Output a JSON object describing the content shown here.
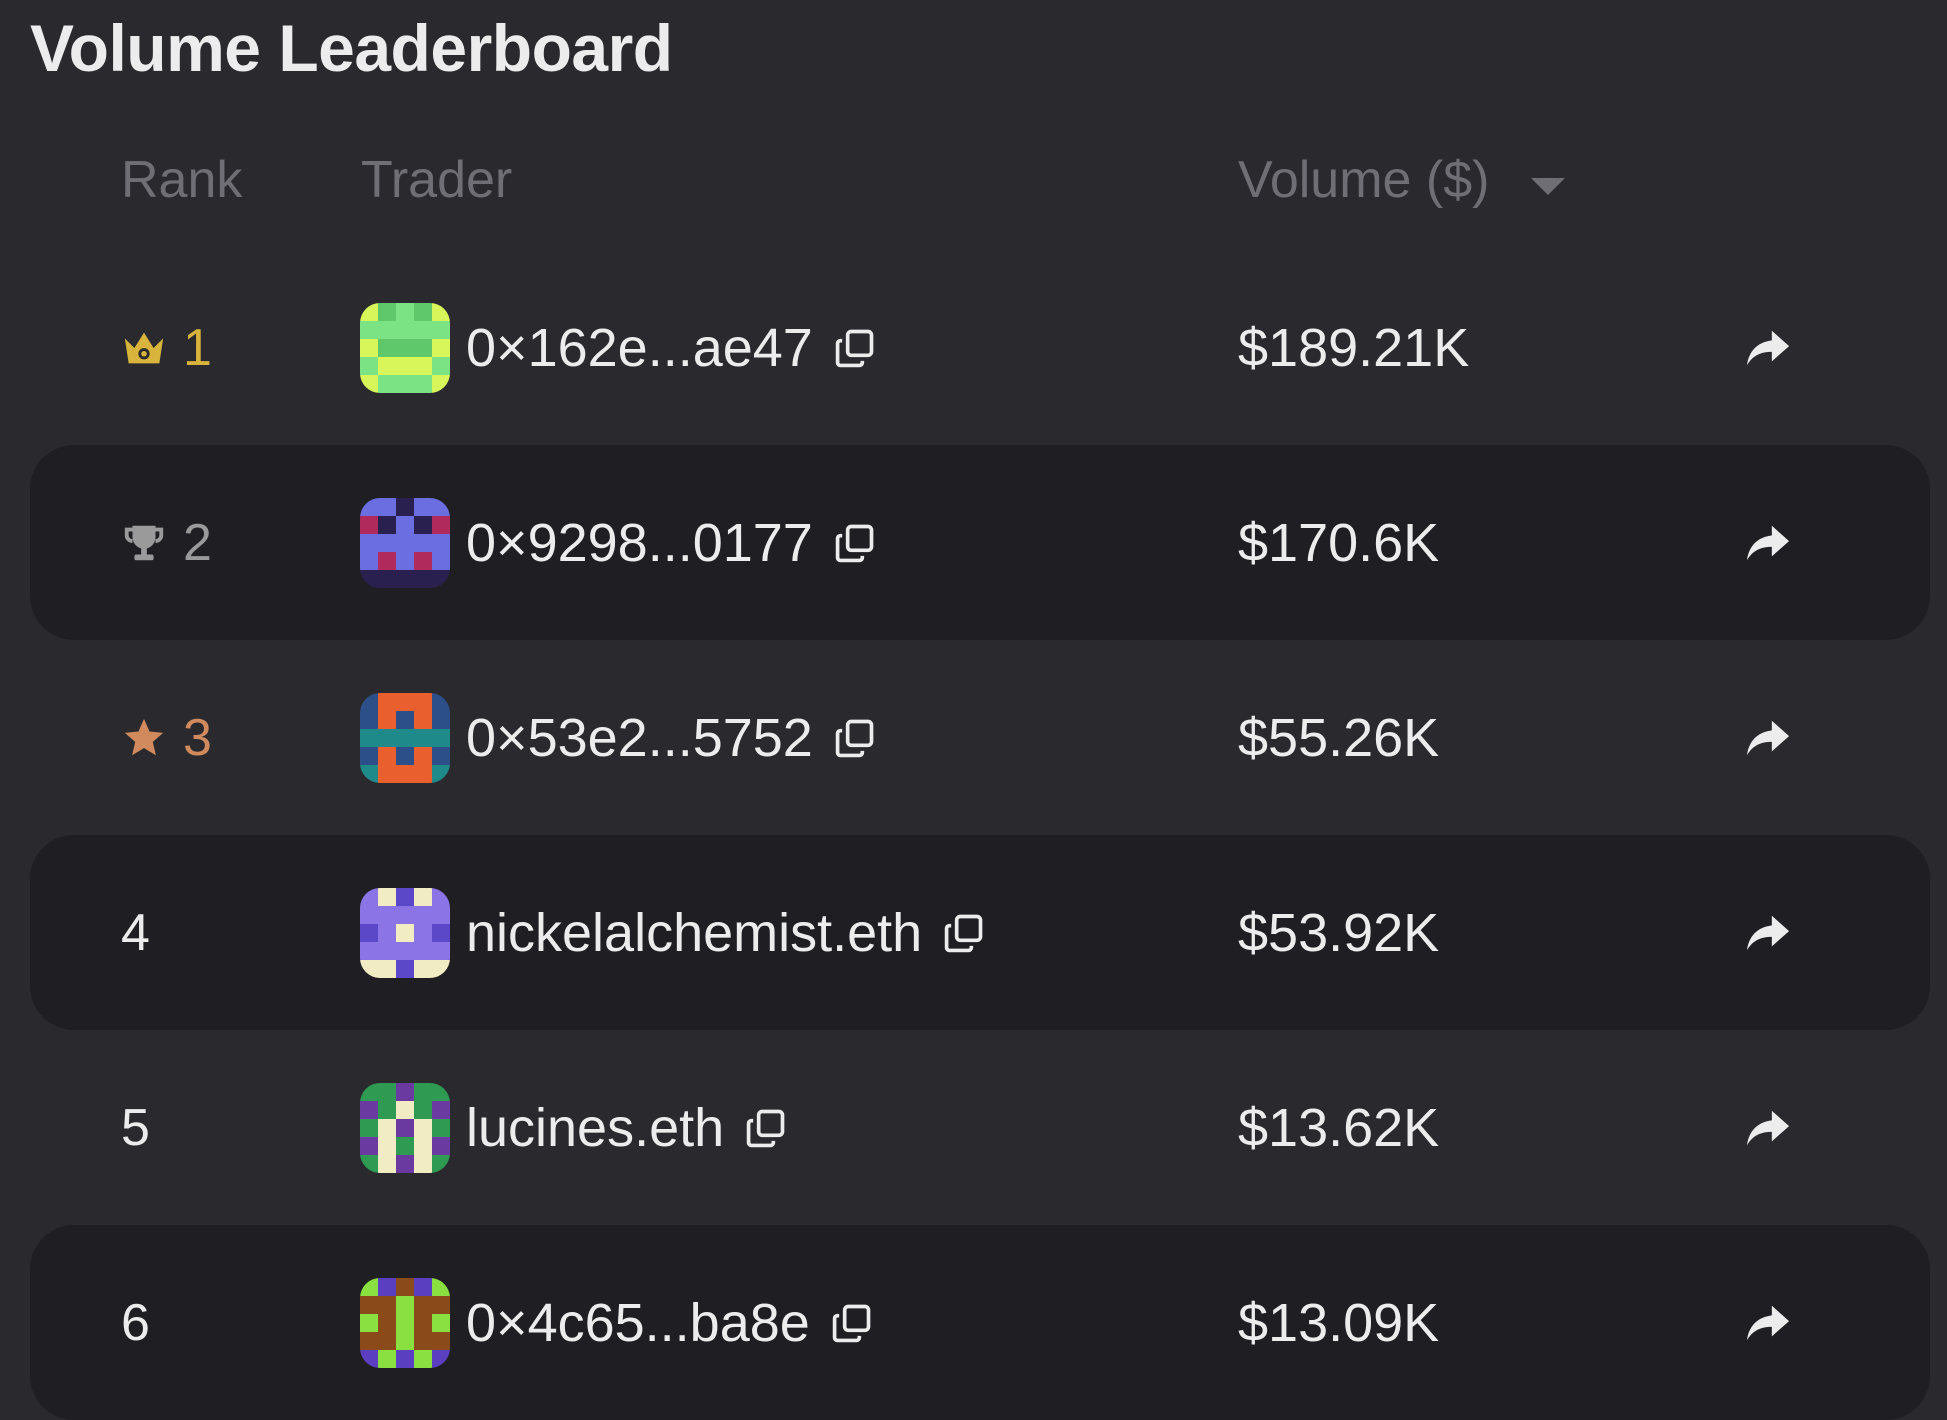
{
  "title": "Volume Leaderboard",
  "columns": {
    "rank": "Rank",
    "trader": "Trader",
    "volume": "Volume ($)"
  },
  "colors": {
    "gold": "#d9b43c",
    "silver": "#9a9a9a",
    "bronze": "#d08a5e",
    "default": "#ececec"
  },
  "rows": [
    {
      "rank": "1",
      "rank_icon": "crown-icon",
      "rank_color": "#d9b43c",
      "trader": "0×162e...ae47",
      "volume": "$189.21K",
      "avatar": {
        "palette": [
          "#7be383",
          "#d8f55a",
          "#5fc86a"
        ]
      }
    },
    {
      "rank": "2",
      "rank_icon": "trophy-icon",
      "rank_color": "#9a9a9a",
      "trader": "0×9298...0177",
      "volume": "$170.6K",
      "avatar": {
        "palette": [
          "#b02a5c",
          "#6a6ee0",
          "#2a2050"
        ]
      }
    },
    {
      "rank": "3",
      "rank_icon": "star-icon",
      "rank_color": "#d08a5e",
      "trader": "0×53e2...5752",
      "volume": "$55.26K",
      "avatar": {
        "palette": [
          "#e9602e",
          "#2c4f8a",
          "#1f8a8a"
        ]
      }
    },
    {
      "rank": "4",
      "rank_icon": "",
      "rank_color": "#ececec",
      "trader": "nickelalchemist.eth",
      "volume": "$53.92K",
      "avatar": {
        "palette": [
          "#f2ecc4",
          "#8a74e6",
          "#5a48c8"
        ]
      }
    },
    {
      "rank": "5",
      "rank_icon": "",
      "rank_color": "#ececec",
      "trader": "lucines.eth",
      "volume": "$13.62K",
      "avatar": {
        "palette": [
          "#2f9a52",
          "#f2ecc4",
          "#6a3aa0"
        ]
      }
    },
    {
      "rank": "6",
      "rank_icon": "",
      "rank_color": "#ececec",
      "trader": "0×4c65...ba8e",
      "volume": "$13.09K",
      "avatar": {
        "palette": [
          "#8a4a1a",
          "#8ae040",
          "#5a40c0"
        ]
      }
    }
  ]
}
